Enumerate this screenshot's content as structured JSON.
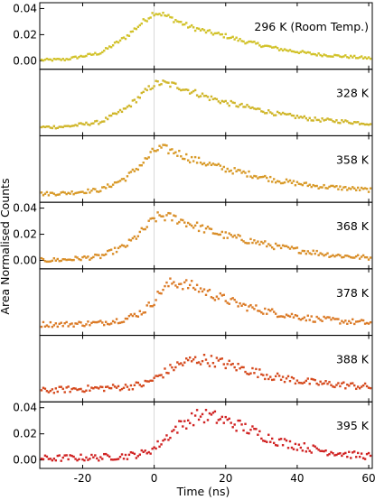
{
  "chart_data": {
    "type": "scatter",
    "xlabel": "Time (ns)",
    "ylabel": "Area Normalised Counts",
    "xlim": [
      -32,
      61
    ],
    "ylim": [
      -0.003,
      0.041
    ],
    "xticks": [
      -20,
      0,
      20,
      40,
      60
    ],
    "xtick_labels": [
      "-20",
      "0",
      "20",
      "40",
      "60"
    ],
    "yticks": [
      0.0,
      0.02,
      0.04
    ],
    "ytick_labels": [
      "0.00",
      "0.02",
      "0.04"
    ],
    "x_step_ns": 0.5,
    "panels": [
      {
        "label": "296 K (Room Temp.)",
        "color": "#d2c22a",
        "show_y_ticks": true,
        "x": [
          -32,
          -25,
          -15,
          -8,
          -3,
          0,
          2,
          6,
          10,
          15,
          20,
          25,
          30,
          35,
          40,
          45,
          50,
          55,
          60
        ],
        "y": [
          0.0005,
          0.001,
          0.006,
          0.018,
          0.03,
          0.037,
          0.036,
          0.031,
          0.026,
          0.022,
          0.019,
          0.015,
          0.012,
          0.009,
          0.007,
          0.005,
          0.004,
          0.003,
          0.002
        ]
      },
      {
        "label": "328 K",
        "color": "#d0b62a",
        "show_y_ticks": false,
        "x": [
          -32,
          -25,
          -15,
          -8,
          -3,
          0,
          2,
          6,
          10,
          15,
          20,
          25,
          30,
          35,
          40,
          45,
          50,
          55,
          60
        ],
        "y": [
          0.0,
          0.0005,
          0.004,
          0.014,
          0.026,
          0.033,
          0.034,
          0.032,
          0.028,
          0.023,
          0.019,
          0.016,
          0.013,
          0.01,
          0.008,
          0.006,
          0.005,
          0.004,
          0.003
        ]
      },
      {
        "label": "358 K",
        "color": "#d89a28",
        "show_y_ticks": false,
        "x": [
          -32,
          -25,
          -15,
          -8,
          -3,
          0,
          2,
          6,
          10,
          15,
          20,
          25,
          30,
          35,
          40,
          45,
          50,
          55,
          60
        ],
        "y": [
          0.0,
          0.0005,
          0.003,
          0.012,
          0.024,
          0.033,
          0.035,
          0.032,
          0.027,
          0.023,
          0.019,
          0.016,
          0.013,
          0.01,
          0.008,
          0.006,
          0.005,
          0.004,
          0.003
        ]
      },
      {
        "label": "368 K",
        "color": "#d98e28",
        "show_y_ticks": true,
        "x": [
          -32,
          -25,
          -15,
          -8,
          -3,
          0,
          2,
          6,
          10,
          15,
          20,
          25,
          30,
          35,
          40,
          45,
          50,
          55,
          60
        ],
        "y": [
          0.0,
          0.0005,
          0.003,
          0.011,
          0.023,
          0.032,
          0.034,
          0.032,
          0.028,
          0.023,
          0.019,
          0.016,
          0.013,
          0.01,
          0.008,
          0.006,
          0.004,
          0.003,
          0.002
        ]
      },
      {
        "label": "378 K",
        "color": "#db7a26",
        "show_y_ticks": false,
        "x": [
          -32,
          -25,
          -15,
          -8,
          -3,
          0,
          2,
          5,
          8,
          12,
          16,
          20,
          25,
          30,
          35,
          40,
          45,
          50,
          55,
          60
        ],
        "y": [
          0.002,
          0.002,
          0.003,
          0.006,
          0.012,
          0.02,
          0.028,
          0.034,
          0.033,
          0.03,
          0.025,
          0.021,
          0.016,
          0.013,
          0.01,
          0.008,
          0.006,
          0.005,
          0.004,
          0.003
        ]
      },
      {
        "label": "388 K",
        "color": "#d54a1e",
        "show_y_ticks": false,
        "x": [
          -32,
          -25,
          -15,
          -8,
          -3,
          0,
          3,
          6,
          10,
          14,
          18,
          22,
          26,
          30,
          35,
          40,
          45,
          50,
          55,
          60
        ],
        "y": [
          0.002,
          0.003,
          0.004,
          0.005,
          0.007,
          0.011,
          0.016,
          0.021,
          0.025,
          0.026,
          0.024,
          0.021,
          0.018,
          0.015,
          0.012,
          0.01,
          0.008,
          0.007,
          0.006,
          0.005
        ]
      },
      {
        "label": "395 K",
        "color": "#d02222",
        "show_y_ticks": true,
        "x": [
          -32,
          -25,
          -15,
          -8,
          -3,
          0,
          3,
          6,
          10,
          13,
          16,
          20,
          25,
          30,
          35,
          40,
          45,
          50,
          55,
          60
        ],
        "y": [
          0.001,
          0.0015,
          0.002,
          0.003,
          0.005,
          0.009,
          0.016,
          0.024,
          0.031,
          0.034,
          0.033,
          0.03,
          0.025,
          0.019,
          0.014,
          0.011,
          0.008,
          0.006,
          0.004,
          0.003
        ]
      }
    ]
  }
}
